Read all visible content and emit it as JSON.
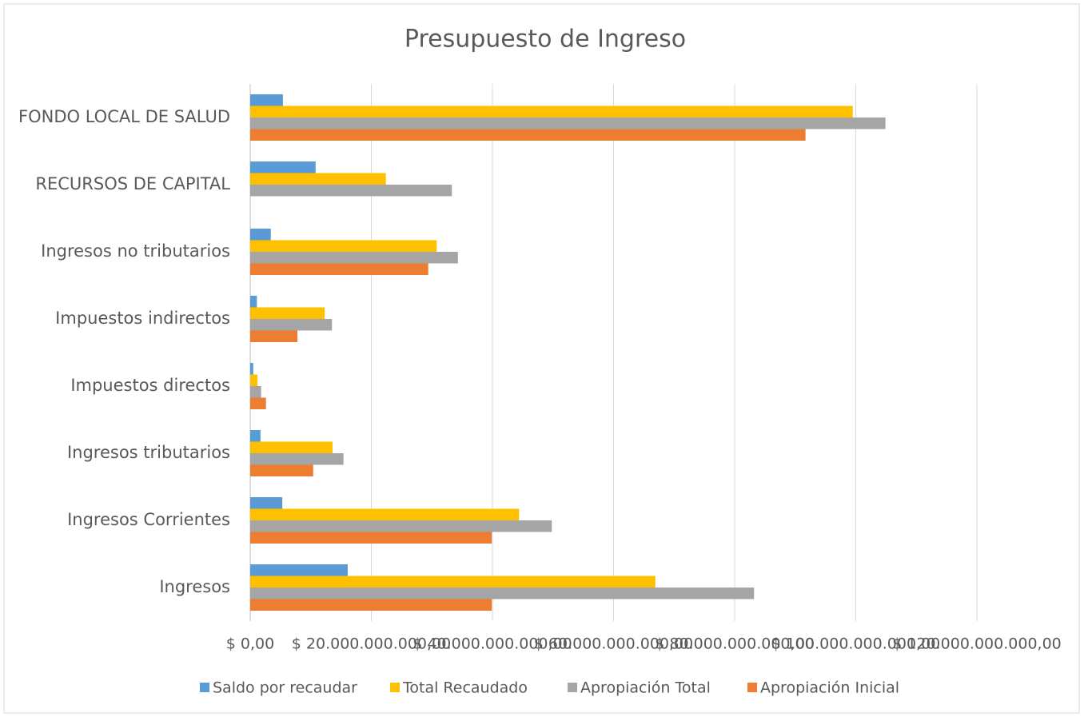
{
  "chart_data": {
    "type": "barh",
    "title": "Presupuesto de Ingreso",
    "categories": [
      "Ingresos",
      "Ingresos Corrientes",
      "Ingresos tributarios",
      "Impuestos directos",
      "Impuestos indirectos",
      "Ingresos no tributarios",
      "RECURSOS DE CAPITAL",
      "FONDO LOCAL DE SALUD"
    ],
    "series": [
      {
        "name": "Saldo por recaudar",
        "color": "#5b9bd5",
        "values": [
          16100000000,
          5300000000,
          1700000000,
          500000000,
          1100000000,
          3400000000,
          10800000000,
          5400000000
        ]
      },
      {
        "name": "Total  Recaudado",
        "color": "#ffc000",
        "values": [
          66900000000,
          44400000000,
          13600000000,
          1200000000,
          12300000000,
          30800000000,
          22400000000,
          99500000000
        ]
      },
      {
        "name": "Apropiación Total",
        "color": "#a5a5a5",
        "values": [
          83200000000,
          49800000000,
          15400000000,
          1800000000,
          13500000000,
          34300000000,
          33300000000,
          104900000000
        ]
      },
      {
        "name": "Apropiación Inicial",
        "color": "#ed7d31",
        "values": [
          39900000000,
          39900000000,
          10400000000,
          2600000000,
          7800000000,
          29400000000,
          0,
          91700000000
        ]
      }
    ],
    "xlim": [
      0,
      120000000000
    ],
    "xticks": [
      {
        "value": 0,
        "label": "$ 0,00"
      },
      {
        "value": 20000000000,
        "label": "$ 20.000.000.000,00"
      },
      {
        "value": 40000000000,
        "label": "$ 40.000.000.000,00"
      },
      {
        "value": 60000000000,
        "label": "$ 60.000.000.000,00"
      },
      {
        "value": 80000000000,
        "label": "$ 80.000.000.000,00"
      },
      {
        "value": 100000000000,
        "label": "$ 100.000.000.000,00"
      },
      {
        "value": 120000000000,
        "label": "$ 120.000.000.000,00"
      }
    ],
    "grid": true,
    "legend": "bottom"
  }
}
